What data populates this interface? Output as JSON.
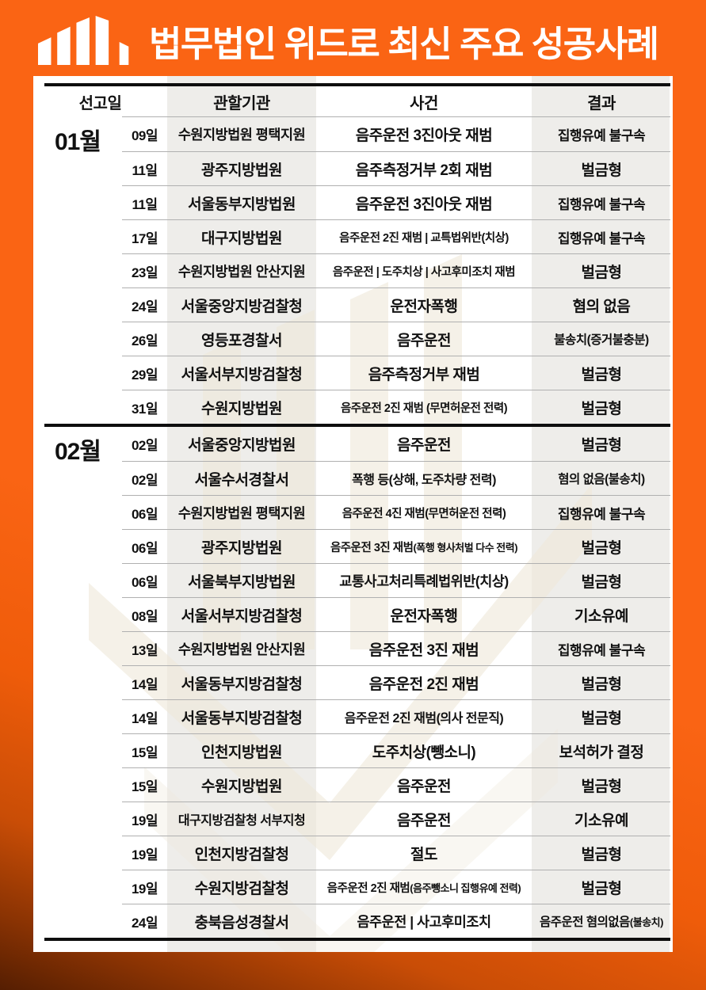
{
  "header": {
    "title": "법무법인 위드로 최신 주요 성공사례",
    "logo_icon": "bar-chart-logo"
  },
  "colors": {
    "background_orange": "#fa6414",
    "background_orange_dark": "#551e02",
    "title_text": "#ffffff",
    "table_text": "#111111",
    "column_stripe": "#eeedea",
    "row_divider": "#b0b0b0",
    "section_rule": "#0e0e0e",
    "watermark_beige": "#efe9da"
  },
  "table": {
    "columns": [
      "선고일",
      "관할기관",
      "사건",
      "결과"
    ],
    "sections": [
      {
        "month": "01월",
        "rows": [
          {
            "date": "09일",
            "agency": "수원지방법원 평택지원",
            "case": "음주운전 3진아웃 재범",
            "result": "집행유예 불구속"
          },
          {
            "date": "11일",
            "agency": "광주지방법원",
            "case": "음주측정거부 2회 재범",
            "result": "벌금형"
          },
          {
            "date": "11일",
            "agency": "서울동부지방법원",
            "case": "음주운전 3진아웃 재범",
            "result": "집행유예 불구속"
          },
          {
            "date": "17일",
            "agency": "대구지방법원",
            "case": "음주운전 2진 재범 | 교특법위반(치상)",
            "result": "집행유예 불구속"
          },
          {
            "date": "23일",
            "agency": "수원지방법원 안산지원",
            "case": "음주운전 | 도주치상 | 사고후미조치 재범",
            "result": "벌금형"
          },
          {
            "date": "24일",
            "agency": "서울중앙지방검찰청",
            "case": "운전자폭행",
            "result": "혐의 없음"
          },
          {
            "date": "26일",
            "agency": "영등포경찰서",
            "case": "음주운전",
            "result": "불송치(증거불충분)"
          },
          {
            "date": "29일",
            "agency": "서울서부지방검찰청",
            "case": "음주측정거부 재범",
            "result": "벌금형"
          },
          {
            "date": "31일",
            "agency": "수원지방법원",
            "case": "음주운전 2진 재범 (무면허운전 전력)",
            "result": "벌금형"
          }
        ]
      },
      {
        "month": "02월",
        "rows": [
          {
            "date": "02일",
            "agency": "서울중앙지방법원",
            "case": "음주운전",
            "result": "벌금형"
          },
          {
            "date": "02일",
            "agency": "서울수서경찰서",
            "case": "폭행 등(상해, 도주차량 전력)",
            "result": "혐의 없음(불송치)"
          },
          {
            "date": "06일",
            "agency": "수원지방법원 평택지원",
            "case": "음주운전 4진 재범(무면허운전 전력)",
            "result": "집행유예 불구속"
          },
          {
            "date": "06일",
            "agency": "광주지방법원",
            "case": "음주운전 3진 재범",
            "case_small": "(폭행 형사처벌 다수 전력)",
            "result": "벌금형"
          },
          {
            "date": "06일",
            "agency": "서울북부지방법원",
            "case": "교통사고처리특례법위반(치상)",
            "result": "벌금형"
          },
          {
            "date": "08일",
            "agency": "서울서부지방검찰청",
            "case": "운전자폭행",
            "result": "기소유예"
          },
          {
            "date": "13일",
            "agency": "수원지방법원 안산지원",
            "case": "음주운전 3진 재범",
            "result": "집행유예 불구속"
          },
          {
            "date": "14일",
            "agency": "서울동부지방검찰청",
            "case": "음주운전 2진 재범",
            "result": "벌금형"
          },
          {
            "date": "14일",
            "agency": "서울동부지방검찰청",
            "case": "음주운전 2진 재범(의사 전문직)",
            "result": "벌금형"
          },
          {
            "date": "15일",
            "agency": "인천지방법원",
            "case": "도주치상(뺑소니)",
            "result": "보석허가 결정"
          },
          {
            "date": "15일",
            "agency": "수원지방법원",
            "case": "음주운전",
            "result": "벌금형"
          },
          {
            "date": "19일",
            "agency": "대구지방검찰청 서부지청",
            "case": "음주운전",
            "result": "기소유예"
          },
          {
            "date": "19일",
            "agency": "인천지방검찰청",
            "case": "절도",
            "result": "벌금형"
          },
          {
            "date": "19일",
            "agency": "수원지방검찰청",
            "case": "음주운전 2진 재범",
            "case_small": "(음주뺑소니 집행유예 전력)",
            "result": "벌금형"
          },
          {
            "date": "24일",
            "agency": "충북음성경찰서",
            "case": "음주운전 | 사고후미조치",
            "result": "음주운전 혐의없음",
            "result_small": "(불송치)"
          }
        ]
      }
    ]
  }
}
